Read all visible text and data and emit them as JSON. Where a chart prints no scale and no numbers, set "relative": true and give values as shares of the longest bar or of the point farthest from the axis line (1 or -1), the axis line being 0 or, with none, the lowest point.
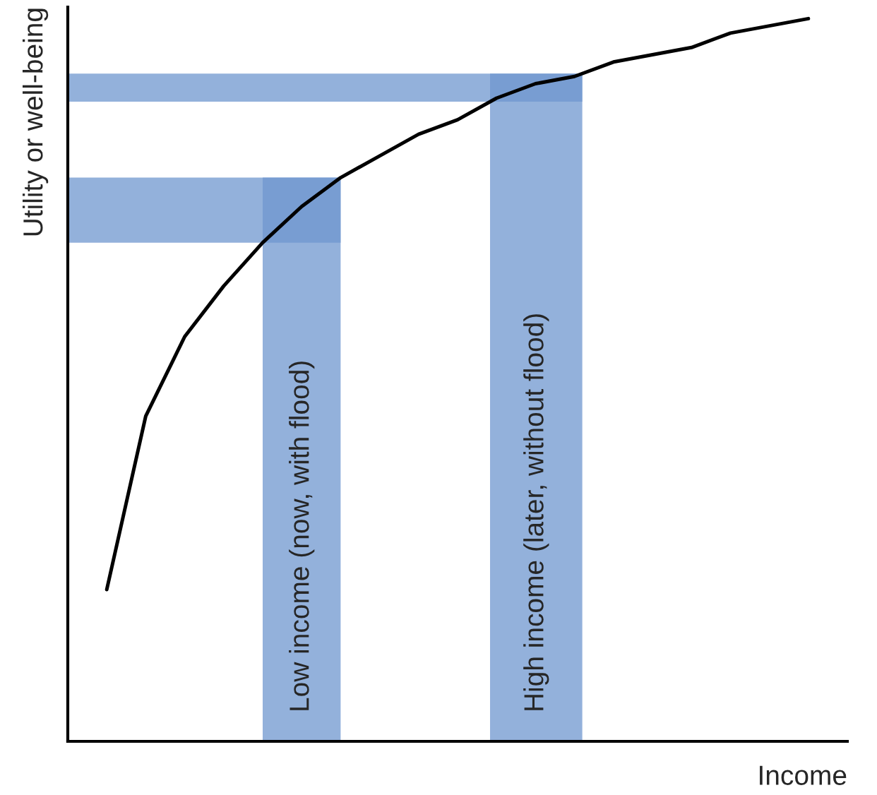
{
  "chart_data": {
    "type": "line",
    "relative": true,
    "xlabel": "Income",
    "ylabel": "Utility or well-being",
    "categories": [
      null,
      null,
      null,
      null,
      null,
      null,
      null,
      null,
      null,
      null,
      null,
      null,
      null,
      null,
      null,
      null,
      null,
      null,
      null,
      null,
      null
    ],
    "series": [
      {
        "color": "#000000",
        "values": [
          null,
          0.21,
          0.45,
          0.56,
          0.63,
          0.69,
          0.74,
          0.78,
          0.81,
          0.84,
          0.86,
          0.89,
          0.91,
          0.92,
          0.94,
          0.95,
          0.96,
          0.98,
          0.99,
          1,
          null
        ]
      }
    ],
    "bands": [
      {
        "axis": "y",
        "from": 0.69,
        "to": 0.78,
        "color": "#6f97cf"
      },
      {
        "axis": "y",
        "from": 0.885,
        "to": 0.924,
        "color": "#6f97cf"
      }
    ],
    "annotations": [
      "Low income (now, with flood)",
      "High income (later, without flood)"
    ],
    "legend": false,
    "marker": "none",
    "line_style": "solid"
  }
}
